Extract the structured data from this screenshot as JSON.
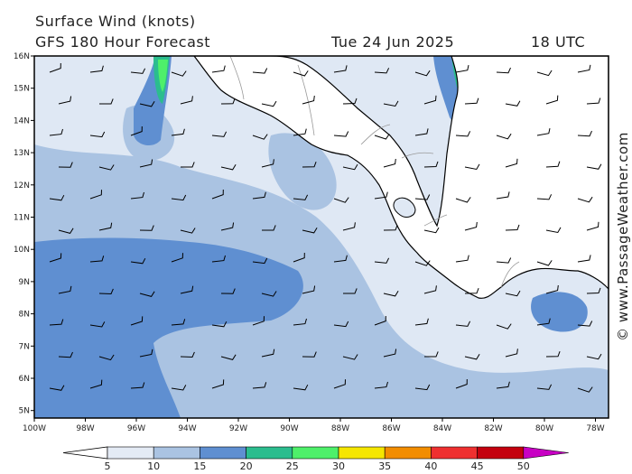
{
  "header": {
    "title": "Surface Wind (knots)",
    "model": "GFS 180 Hour Forecast",
    "date": "Tue 24 Jun 2025",
    "time": "18 UTC"
  },
  "credit": "© www.PassageWeather.com",
  "axes": {
    "lat_labels": [
      "16N",
      "15N",
      "14N",
      "13N",
      "12N",
      "11N",
      "10N",
      "9N",
      "8N",
      "7N",
      "6N",
      "5N"
    ],
    "lon_labels": [
      "100W",
      "98W",
      "96W",
      "94W",
      "92W",
      "90W",
      "88W",
      "86W",
      "84W",
      "82W",
      "80W",
      "78W"
    ]
  },
  "colorbar": {
    "labels": [
      "5",
      "10",
      "15",
      "20",
      "25",
      "30",
      "35",
      "40",
      "45",
      "50"
    ],
    "colors": [
      "#e4ebf5",
      "#aac3e2",
      "#5f8fd1",
      "#2bbd8e",
      "#4ef06a",
      "#f5e600",
      "#f28d00",
      "#ef3030",
      "#c4000e",
      "#c800c4"
    ]
  },
  "colors": {
    "land": "#ffffff",
    "light_wind": "#dfe8f4",
    "mid_wind": "#aac3e2",
    "strong_wind": "#5f8fd1",
    "gale": "#2bbd8e",
    "coast": "#000000",
    "border": "#9a9a9a"
  }
}
